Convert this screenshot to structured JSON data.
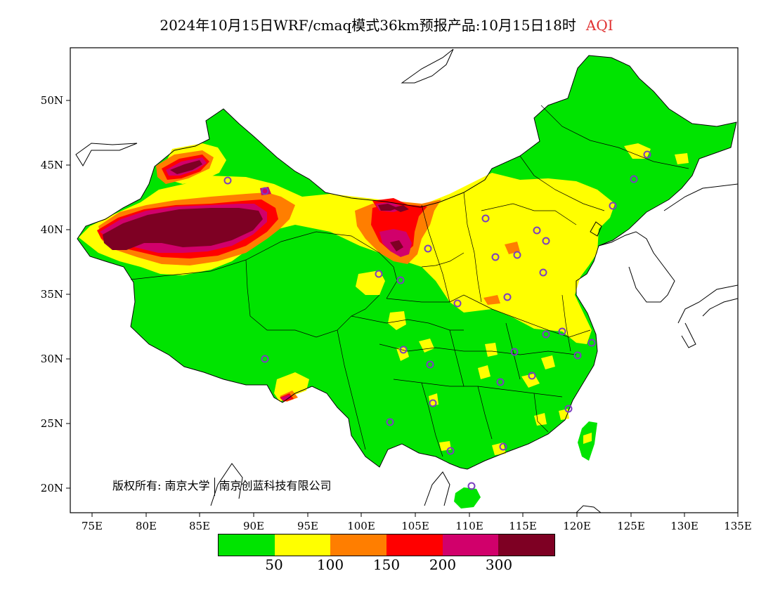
{
  "title": {
    "main": "2024年10月15日WRF/cmaq模式36km预报产品:10月15日18时",
    "product": "AQI"
  },
  "axes": {
    "lon_labels": [
      "75E",
      "80E",
      "85E",
      "90E",
      "95E",
      "100E",
      "105E",
      "110E",
      "115E",
      "120E",
      "125E",
      "130E",
      "135E"
    ],
    "lat_labels": [
      "50N",
      "45N",
      "40N",
      "35N",
      "30N",
      "25N",
      "20N"
    ]
  },
  "copyright": {
    "prefix": "版权所有:",
    "org1": "南京大学",
    "org2": "南京创蓝科技有限公司"
  },
  "legend": {
    "colors": [
      "#00e400",
      "#ffff00",
      "#ff7e00",
      "#ff0000",
      "#d1006b",
      "#7e0023"
    ],
    "labels": [
      "50",
      "100",
      "150",
      "200",
      "300"
    ]
  },
  "colors": {
    "land_good": "#00e400",
    "moderate": "#ffff00",
    "usg": "#ff7e00",
    "unhealthy": "#ff0000",
    "very_unhealthy": "#d1006b",
    "hazardous": "#7e0023",
    "site_marker": "#7b3fbf"
  }
}
